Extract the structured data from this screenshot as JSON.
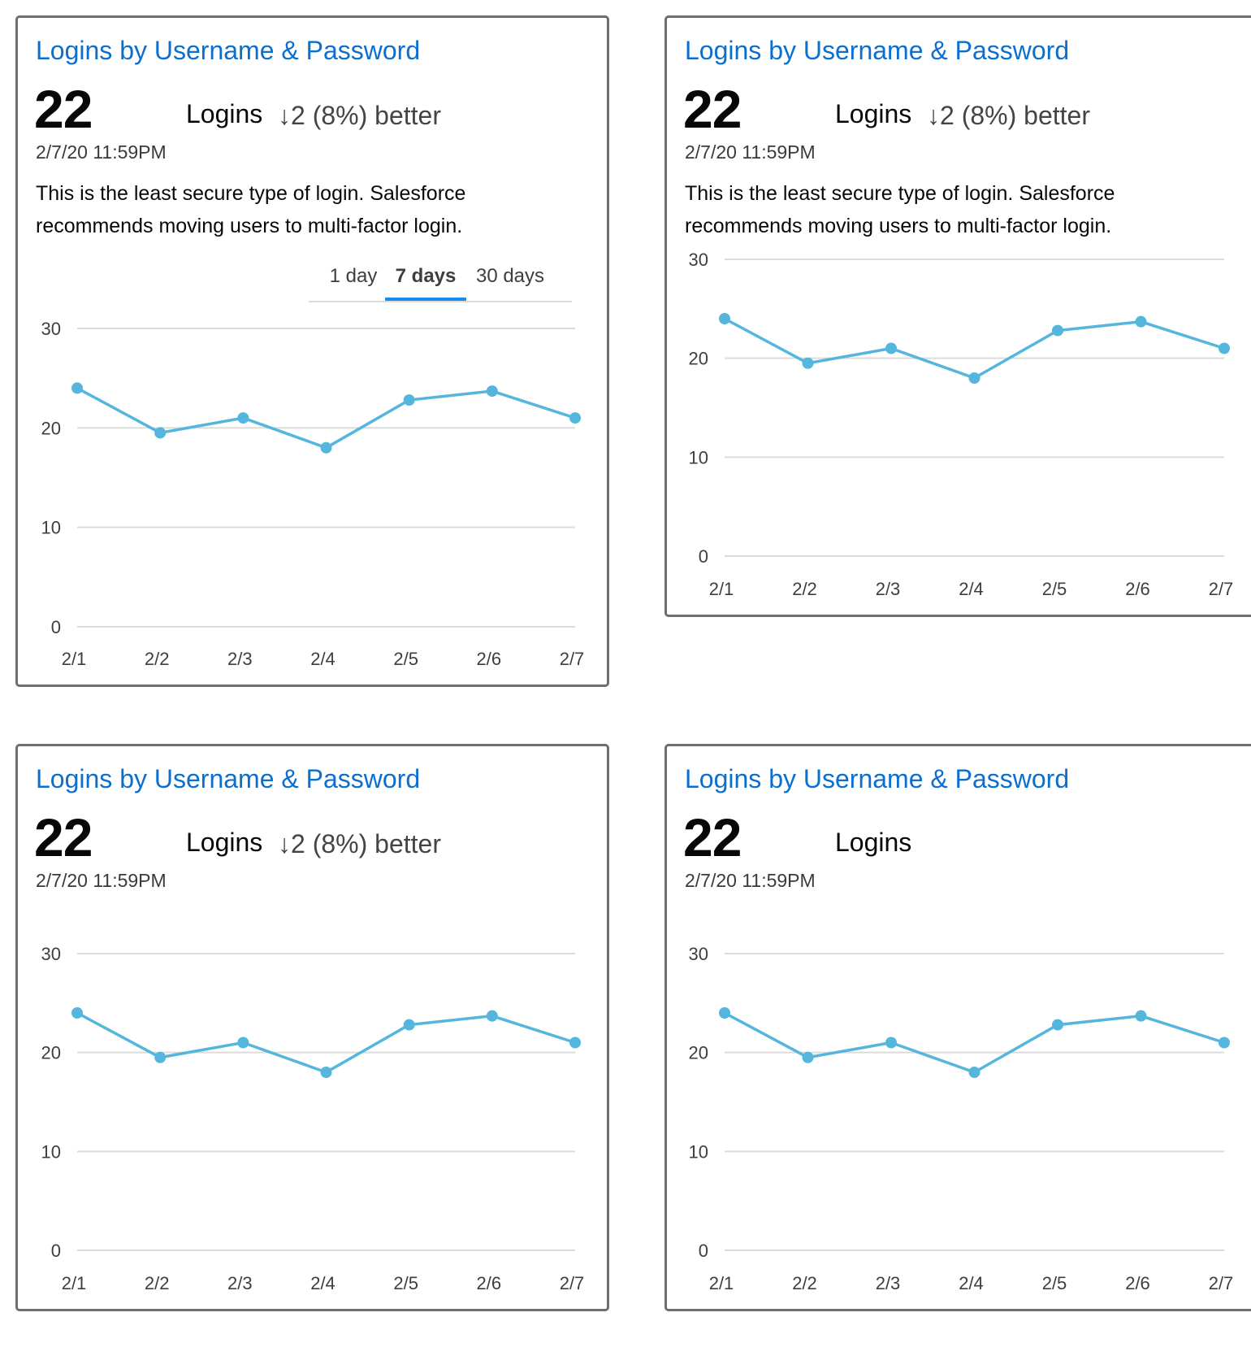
{
  "accent_color": "#0a6fd0",
  "series_color": "#54b6dc",
  "cards": [
    {
      "title": "Logins by Username & Password",
      "value": "22",
      "unit": "Logins",
      "delta": "↓2 (8%) better",
      "date": "2/7/20 11:59PM",
      "description": "This is the least secure type of login. Salesforce recommends moving users to multi-factor login.",
      "tabs": [
        {
          "label": "1 day",
          "active": false
        },
        {
          "label": "7 days",
          "active": true
        },
        {
          "label": "30 days",
          "active": false
        }
      ]
    },
    {
      "title": "Logins by Username & Password",
      "value": "22",
      "unit": "Logins",
      "delta": "↓2 (8%) better",
      "date": "2/7/20 11:59PM",
      "description": "This is the least secure type of login. Salesforce recommends moving users to multi-factor login."
    },
    {
      "title": "Logins by Username & Password",
      "value": "22",
      "unit": "Logins",
      "delta": "↓2 (8%) better",
      "date": "2/7/20 11:59PM"
    },
    {
      "title": "Logins by Username & Password",
      "value": "22",
      "unit": "Logins",
      "date": "2/7/20 11:59PM"
    }
  ],
  "chart_data": [
    {
      "type": "line",
      "categories": [
        "2/1",
        "2/2",
        "2/3",
        "2/4",
        "2/5",
        "2/6",
        "2/7"
      ],
      "values": [
        24,
        19.5,
        21,
        18,
        22.8,
        23.7,
        21
      ],
      "yticks": [
        "0",
        "10",
        "20",
        "30"
      ],
      "ylim": [
        0,
        30
      ],
      "grid": true
    },
    {
      "type": "line",
      "categories": [
        "2/1",
        "2/2",
        "2/3",
        "2/4",
        "2/5",
        "2/6",
        "2/7"
      ],
      "values": [
        24,
        19.5,
        21,
        18,
        22.8,
        23.7,
        21
      ],
      "yticks": [
        "0",
        "10",
        "20",
        "30"
      ],
      "ylim": [
        0,
        30
      ],
      "grid": true
    },
    {
      "type": "line",
      "categories": [
        "2/1",
        "2/2",
        "2/3",
        "2/4",
        "2/5",
        "2/6",
        "2/7"
      ],
      "values": [
        24,
        19.5,
        21,
        18,
        22.8,
        23.7,
        21
      ],
      "yticks": [
        "0",
        "10",
        "20",
        "30"
      ],
      "ylim": [
        0,
        30
      ],
      "grid": true
    },
    {
      "type": "line",
      "categories": [
        "2/1",
        "2/2",
        "2/3",
        "2/4",
        "2/5",
        "2/6",
        "2/7"
      ],
      "values": [
        24,
        19.5,
        21,
        18,
        22.8,
        23.7,
        21
      ],
      "yticks": [
        "0",
        "10",
        "20",
        "30"
      ],
      "ylim": [
        0,
        30
      ],
      "grid": true
    }
  ]
}
